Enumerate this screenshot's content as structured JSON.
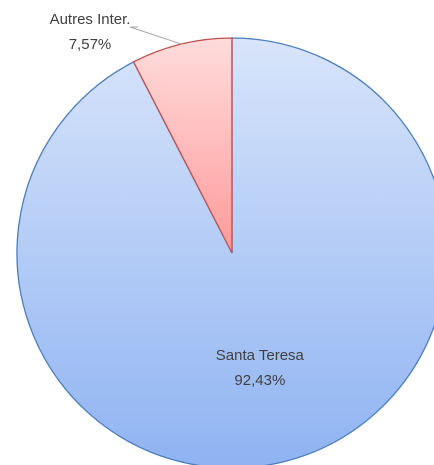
{
  "chart_data": {
    "type": "pie",
    "categories": [
      "Santa Teresa",
      "Autres Inter."
    ],
    "values": [
      92.43,
      7.57
    ],
    "value_labels": [
      "92,43%",
      "7,57%"
    ],
    "colors": [
      "#8fb3f2",
      "#ff9a9a"
    ],
    "edge_colors": [
      "#4a7ebb",
      "#c0504d"
    ]
  }
}
